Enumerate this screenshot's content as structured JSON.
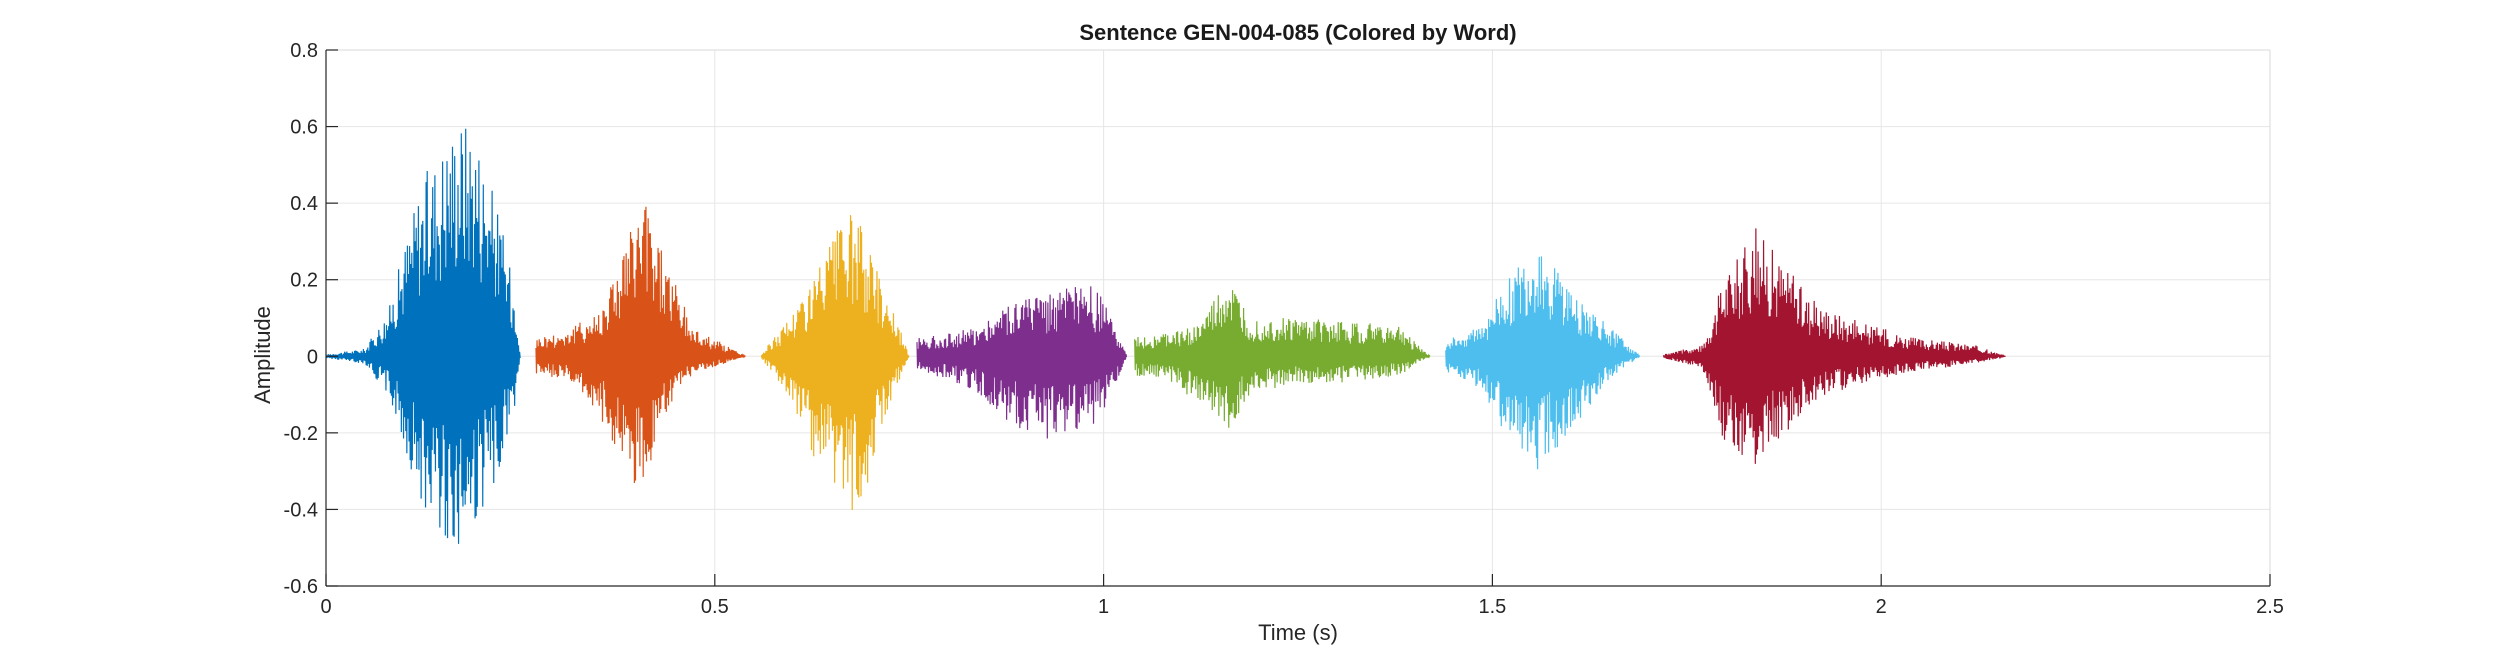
{
  "chart_data": {
    "type": "line",
    "title": "Sentence GEN-004-085 (Colored by Word)",
    "xlabel": "Time (s)",
    "ylabel": "Amplitude",
    "xlim": [
      0,
      2.5
    ],
    "ylim": [
      -0.6,
      0.8
    ],
    "xticks": [
      0,
      0.5,
      1,
      1.5,
      2,
      2.5
    ],
    "xtick_labels": [
      "0",
      "0.5",
      "1",
      "1.5",
      "2",
      "2.5"
    ],
    "yticks": [
      -0.6,
      -0.4,
      -0.2,
      0,
      0.2,
      0.4,
      0.6,
      0.8
    ],
    "ytick_labels": [
      "-0.6",
      "-0.4",
      "-0.2",
      "0",
      "0.2",
      "0.4",
      "0.6",
      "0.8"
    ],
    "grid": true,
    "legend": "none",
    "series": [
      {
        "color": "#0072BD",
        "x": [
          0.0,
          0.05,
          0.08,
          0.12,
          0.17,
          0.19,
          0.22,
          0.245,
          0.25
        ],
        "y_max": [
          0.005,
          0.02,
          0.12,
          0.45,
          0.64,
          0.62,
          0.4,
          0.15,
          0.0
        ],
        "y_min": [
          -0.005,
          -0.02,
          -0.1,
          -0.38,
          -0.52,
          -0.47,
          -0.32,
          -0.12,
          0.0
        ]
      },
      {
        "color": "#D95319",
        "x": [
          0.27,
          0.31,
          0.35,
          0.385,
          0.41,
          0.43,
          0.47,
          0.54
        ],
        "y_max": [
          0.05,
          0.07,
          0.12,
          0.3,
          0.42,
          0.3,
          0.08,
          0.0
        ],
        "y_min": [
          -0.05,
          -0.06,
          -0.15,
          -0.32,
          -0.35,
          -0.2,
          -0.05,
          0.0
        ]
      },
      {
        "color": "#EDB120",
        "x": [
          0.56,
          0.6,
          0.63,
          0.67,
          0.69,
          0.72,
          0.75
        ],
        "y_max": [
          0.005,
          0.12,
          0.22,
          0.38,
          0.34,
          0.18,
          0.0
        ],
        "y_min": [
          -0.005,
          -0.12,
          -0.3,
          -0.42,
          -0.38,
          -0.15,
          0.0
        ]
      },
      {
        "color": "#7E2F8E",
        "x": [
          0.76,
          0.8,
          0.84,
          0.88,
          0.93,
          0.98,
          1.0,
          1.03
        ],
        "y_max": [
          0.05,
          0.06,
          0.08,
          0.15,
          0.17,
          0.19,
          0.15,
          0.0
        ],
        "y_min": [
          -0.04,
          -0.06,
          -0.1,
          -0.18,
          -0.22,
          -0.2,
          -0.15,
          0.0
        ]
      },
      {
        "color": "#77AC30",
        "x": [
          1.04,
          1.08,
          1.12,
          1.16,
          1.19,
          1.25,
          1.32,
          1.38,
          1.42
        ],
        "y_max": [
          0.05,
          0.06,
          0.08,
          0.2,
          0.1,
          0.1,
          0.09,
          0.08,
          0.0
        ],
        "y_min": [
          -0.05,
          -0.06,
          -0.12,
          -0.2,
          -0.1,
          -0.07,
          -0.07,
          -0.05,
          0.0
        ]
      },
      {
        "color": "#4DBEEE",
        "x": [
          1.44,
          1.48,
          1.52,
          1.56,
          1.6,
          1.65,
          1.69
        ],
        "y_max": [
          0.04,
          0.08,
          0.2,
          0.3,
          0.18,
          0.08,
          0.0
        ],
        "y_min": [
          -0.04,
          -0.08,
          -0.22,
          -0.3,
          -0.2,
          -0.06,
          0.0
        ]
      },
      {
        "color": "#A2142F",
        "x": [
          1.72,
          1.77,
          1.8,
          1.84,
          1.87,
          1.91,
          1.96,
          2.04,
          2.12,
          2.16
        ],
        "y_max": [
          0.005,
          0.03,
          0.22,
          0.34,
          0.26,
          0.15,
          0.1,
          0.05,
          0.03,
          0.0
        ],
        "y_min": [
          -0.005,
          -0.03,
          -0.25,
          -0.3,
          -0.22,
          -0.12,
          -0.08,
          -0.04,
          -0.02,
          0.0
        ]
      }
    ]
  }
}
